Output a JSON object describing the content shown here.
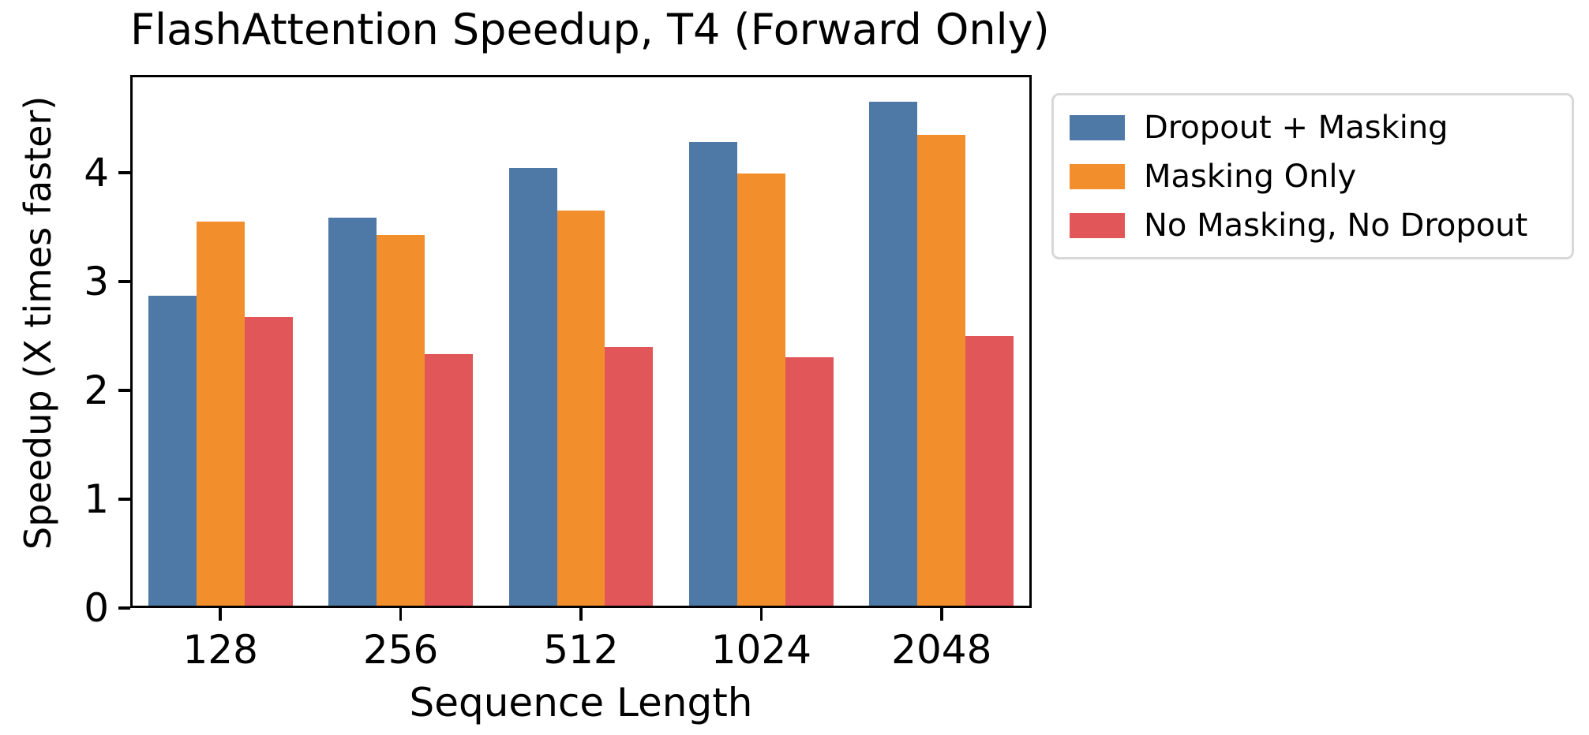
{
  "chart_data": {
    "type": "bar",
    "title": "FlashAttention Speedup, T4 (Forward Only)",
    "xlabel": "Sequence Length",
    "ylabel": "Speedup (X times faster)",
    "categories": [
      "128",
      "256",
      "512",
      "1024",
      "2048"
    ],
    "series": [
      {
        "name": "Dropout + Masking",
        "color": "#4E79A7",
        "values": [
          2.85,
          3.57,
          4.02,
          4.26,
          4.63
        ]
      },
      {
        "name": "Masking Only",
        "color": "#F28E2B",
        "values": [
          3.53,
          3.41,
          3.63,
          3.97,
          4.33
        ]
      },
      {
        "name": "No Masking, No Dropout",
        "color": "#E15759",
        "values": [
          2.65,
          2.31,
          2.38,
          2.28,
          2.48
        ]
      }
    ],
    "y_ticks": [
      "0",
      "1",
      "2",
      "3",
      "4"
    ],
    "ylim": [
      0,
      4.9
    ],
    "grid": false,
    "legend_position": "outside-right",
    "axis_color": "#000000",
    "legend_border_color": "#d8d8d8",
    "background_color": "#ffffff"
  }
}
